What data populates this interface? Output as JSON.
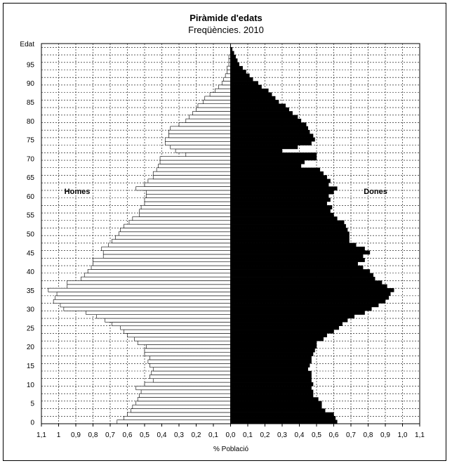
{
  "chart_data": {
    "type": "bar",
    "orientation": "horizontal-population-pyramid",
    "title": "Piràmide d'edats",
    "subtitle": "Freqüències. 2010",
    "xlabel": "% Població",
    "ylabel": "Edat",
    "xlim": [
      -1.1,
      1.1
    ],
    "ylim": [
      0,
      100
    ],
    "x_ticks": [
      "1,1",
      "1",
      "0,9",
      "0,8",
      "0,7",
      "0,6",
      "0,5",
      "0,4",
      "0,3",
      "0,2",
      "0,1",
      "0,0",
      "0,1",
      "0,2",
      "0,3",
      "0,4",
      "0,5",
      "0,6",
      "0,7",
      "0,8",
      "0,9",
      "1,0",
      "1,1"
    ],
    "y_ticks": [
      "0",
      "5",
      "10",
      "15",
      "20",
      "25",
      "30",
      "35",
      "40",
      "45",
      "50",
      "55",
      "60",
      "65",
      "70",
      "75",
      "80",
      "85",
      "90",
      "95",
      "Edat"
    ],
    "grid": true,
    "series": [
      {
        "name": "Homes",
        "color": "#ffffff",
        "values": [
          0.66,
          0.62,
          0.6,
          0.58,
          0.57,
          0.55,
          0.54,
          0.53,
          0.52,
          0.55,
          0.5,
          0.45,
          0.47,
          0.46,
          0.45,
          0.47,
          0.48,
          0.47,
          0.5,
          0.5,
          0.49,
          0.54,
          0.56,
          0.6,
          0.62,
          0.64,
          0.69,
          0.73,
          0.78,
          0.84,
          0.97,
          0.99,
          1.03,
          1.02,
          1.01,
          1.06,
          0.95,
          0.95,
          0.87,
          0.85,
          0.83,
          0.81,
          0.8,
          0.8,
          0.74,
          0.74,
          0.75,
          0.71,
          0.69,
          0.67,
          0.65,
          0.64,
          0.62,
          0.59,
          0.57,
          0.53,
          0.53,
          0.52,
          0.5,
          0.5,
          0.49,
          0.49,
          0.55,
          0.5,
          0.48,
          0.45,
          0.45,
          0.43,
          0.42,
          0.41,
          0.41,
          0.26,
          0.32,
          0.35,
          0.38,
          0.38,
          0.36,
          0.36,
          0.35,
          0.3,
          0.26,
          0.24,
          0.22,
          0.2,
          0.19,
          0.16,
          0.15,
          0.12,
          0.09,
          0.07,
          0.05,
          0.04,
          0.03,
          0.02,
          0.02,
          0.01,
          0.01,
          0.01,
          0.0,
          0.0
        ]
      },
      {
        "name": "Dones",
        "color": "#000000",
        "values": [
          0.62,
          0.61,
          0.6,
          0.55,
          0.53,
          0.53,
          0.51,
          0.48,
          0.48,
          0.47,
          0.48,
          0.47,
          0.47,
          0.47,
          0.45,
          0.46,
          0.47,
          0.47,
          0.48,
          0.49,
          0.5,
          0.5,
          0.54,
          0.56,
          0.6,
          0.63,
          0.65,
          0.68,
          0.72,
          0.78,
          0.82,
          0.86,
          0.9,
          0.92,
          0.93,
          0.95,
          0.91,
          0.88,
          0.84,
          0.83,
          0.81,
          0.77,
          0.74,
          0.78,
          0.77,
          0.81,
          0.78,
          0.73,
          0.69,
          0.69,
          0.69,
          0.68,
          0.67,
          0.66,
          0.62,
          0.6,
          0.58,
          0.59,
          0.56,
          0.58,
          0.57,
          0.6,
          0.62,
          0.57,
          0.58,
          0.56,
          0.54,
          0.52,
          0.41,
          0.43,
          0.5,
          0.5,
          0.3,
          0.39,
          0.47,
          0.49,
          0.48,
          0.46,
          0.45,
          0.44,
          0.41,
          0.39,
          0.36,
          0.34,
          0.32,
          0.28,
          0.26,
          0.24,
          0.22,
          0.18,
          0.16,
          0.13,
          0.11,
          0.09,
          0.07,
          0.05,
          0.04,
          0.03,
          0.02,
          0.01
        ]
      }
    ]
  }
}
